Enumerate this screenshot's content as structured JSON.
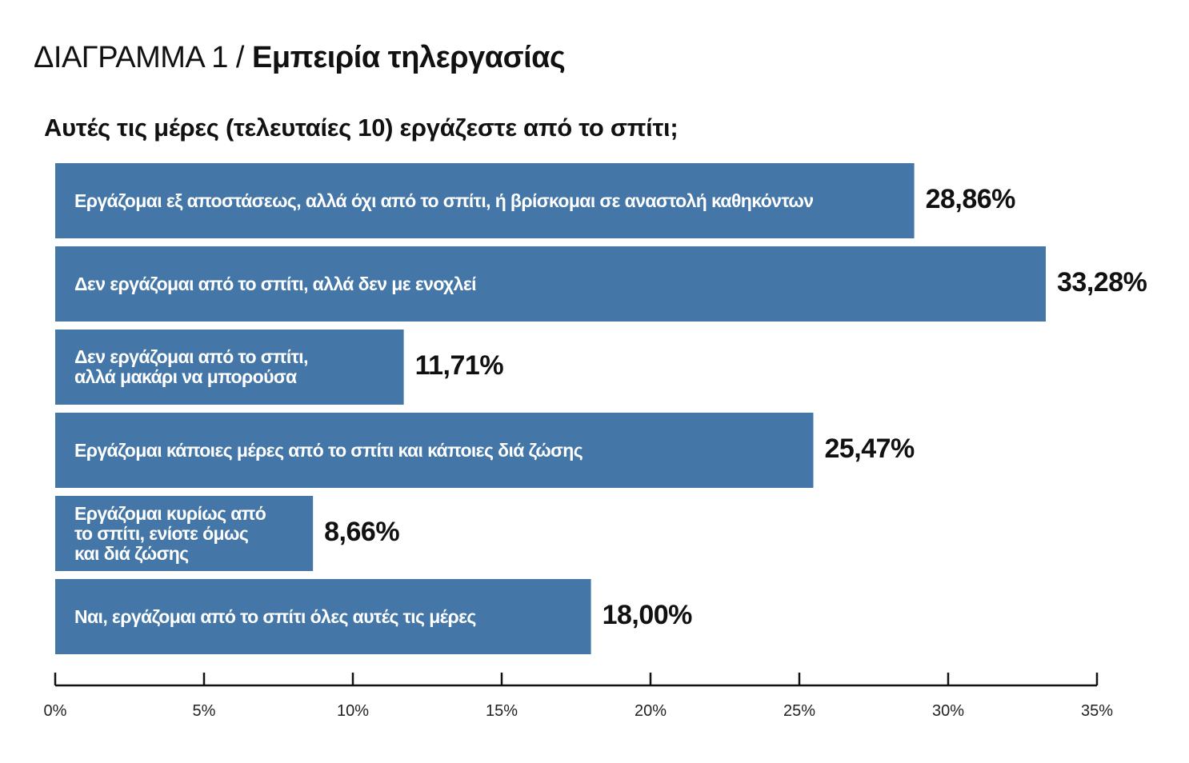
{
  "header": {
    "title_prefix": "ΔΙΑΓΡΑΜΜΑ 1 / ",
    "title_main": "Εμπειρία τηλεργασίας",
    "question": "Αυτές τις μέρες (τελευταίες 10) εργάζεστε από το σπίτι;"
  },
  "chart_data": {
    "type": "bar",
    "orientation": "horizontal",
    "title": "Αυτές τις μέρες (τελευταίες 10) εργάζεστε από το σπίτι;",
    "categories": [
      "Εργάζομαι εξ αποστάσεως, αλλά όχι από το σπίτι, ή βρίσκομαι σε αναστολή καθηκόντων",
      "Δεν εργάζομαι από το σπίτι, αλλά δεν με ενοχλεί",
      "Δεν εργάζομαι από το σπίτι,\nαλλά μακάρι να μπορούσα",
      "Εργάζομαι κάποιες μέρες από το σπίτι και κάποιες διά ζώσης",
      "Εργάζομαι κυρίως από\nτο σπίτι, ενίοτε όμως\nκαι διά ζώσης",
      "Ναι, εργάζομαι από το σπίτι όλες αυτές τις μέρες"
    ],
    "values": [
      28.86,
      33.28,
      11.71,
      25.47,
      8.66,
      18.0
    ],
    "value_labels": [
      "28,86%",
      "33,28%",
      "11,71%",
      "25,47%",
      "8,66%",
      "18,00%"
    ],
    "xlim": [
      0,
      35
    ],
    "x_ticks": [
      0,
      5,
      10,
      15,
      20,
      25,
      30,
      35
    ],
    "x_tick_labels": [
      "0%",
      "5%",
      "10%",
      "15%",
      "20%",
      "25%",
      "30%",
      "35%"
    ],
    "grid": false,
    "bar_color": "#4477a7",
    "axis_color": "#111111"
  }
}
